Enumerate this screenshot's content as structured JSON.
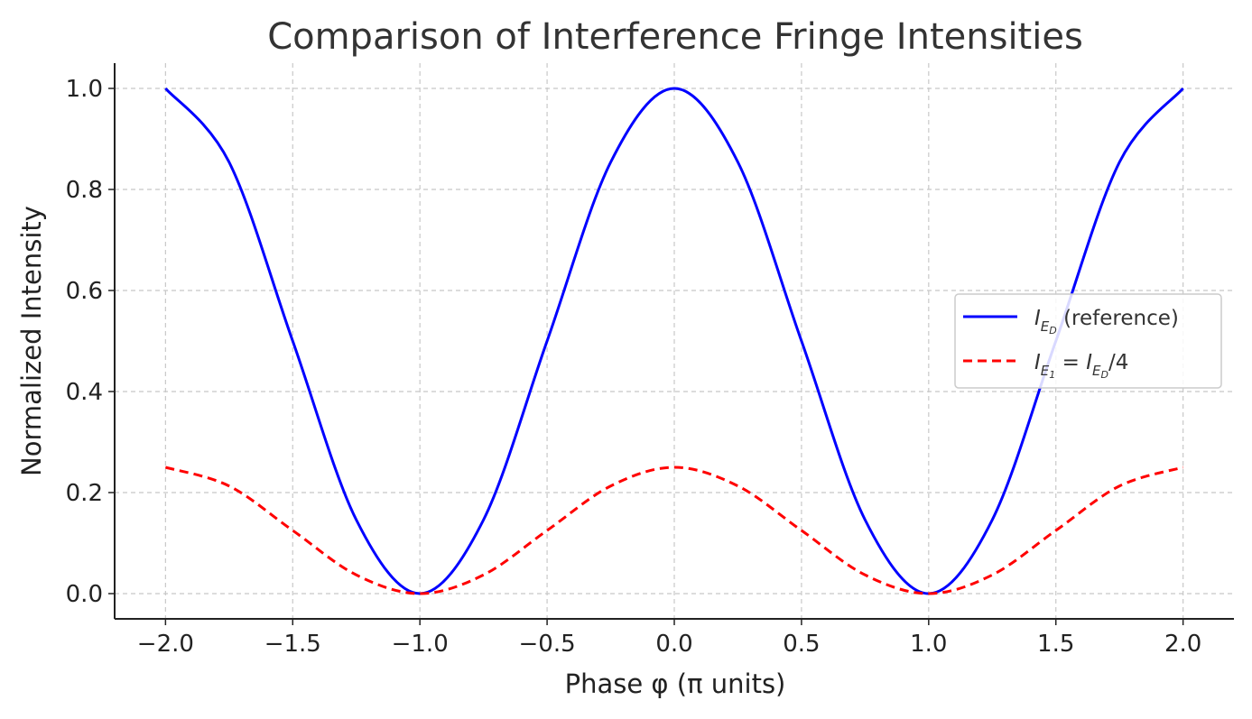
{
  "chart_data": {
    "type": "line",
    "title": "Comparison of Interference Fringe Intensities",
    "xlabel": "Phase φ (π units)",
    "ylabel": "Normalized Intensity",
    "xlim": [
      -2.2,
      2.2
    ],
    "ylim": [
      -0.05,
      1.05
    ],
    "xticks": [
      -2.0,
      -1.5,
      -1.0,
      -0.5,
      0.0,
      0.5,
      1.0,
      1.5,
      2.0
    ],
    "xtick_labels": [
      "−2.0",
      "−1.5",
      "−1.0",
      "−0.5",
      "0.0",
      "0.5",
      "1.0",
      "1.5",
      "2.0"
    ],
    "yticks": [
      0.0,
      0.2,
      0.4,
      0.6,
      0.8,
      1.0
    ],
    "ytick_labels": [
      "0.0",
      "0.2",
      "0.4",
      "0.6",
      "0.8",
      "1.0"
    ],
    "grid": true,
    "legend_position": "center-right",
    "x": [
      -2.0,
      -1.75,
      -1.5,
      -1.25,
      -1.0,
      -0.75,
      -0.5,
      -0.25,
      0.0,
      0.25,
      0.5,
      0.75,
      1.0,
      1.25,
      1.5,
      1.75,
      2.0
    ],
    "series": [
      {
        "name": "I_{E_D} (reference)",
        "legend_main": "I",
        "legend_sub": "E",
        "legend_subsub": "D",
        "legend_suffix": " (reference)",
        "color": "#0000ff",
        "style": "solid",
        "values": [
          1.0,
          0.854,
          0.5,
          0.146,
          0.0,
          0.146,
          0.5,
          0.854,
          1.0,
          0.854,
          0.5,
          0.146,
          0.0,
          0.146,
          0.5,
          0.854,
          1.0
        ]
      },
      {
        "name": "I_{E_1} = I_{E_D}/4",
        "legend_main": "I",
        "legend_sub": "E",
        "legend_subsub": "1",
        "legend_equals": " = ",
        "legend_main2": "I",
        "legend_sub2": "E",
        "legend_subsub2": "D",
        "legend_suffix": "/4",
        "color": "#ff0000",
        "style": "dashed",
        "values": [
          0.25,
          0.213,
          0.125,
          0.037,
          0.0,
          0.037,
          0.125,
          0.213,
          0.25,
          0.213,
          0.125,
          0.037,
          0.0,
          0.037,
          0.125,
          0.213,
          0.25
        ]
      }
    ]
  }
}
